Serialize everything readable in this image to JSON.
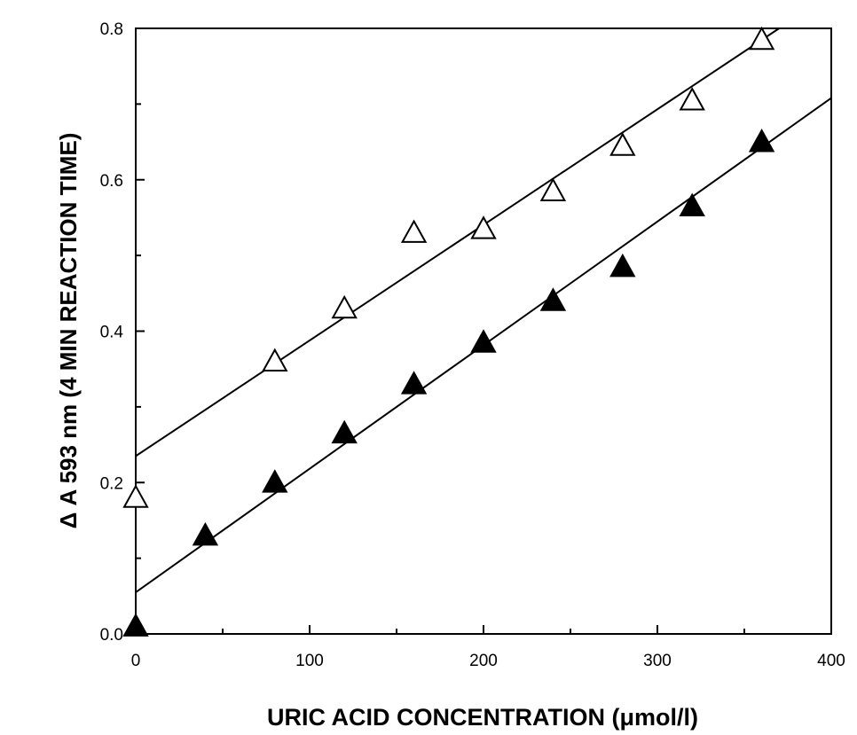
{
  "chart_data": {
    "type": "scatter",
    "title": "",
    "xlabel": "URIC  ACID  CONCENTRATION  (μmol/l)",
    "ylabel": "Δ A 593 nm (4 MIN REACTION TIME)",
    "xlim": [
      0,
      400
    ],
    "ylim": [
      0,
      0.8
    ],
    "xticks": [
      0,
      100,
      200,
      300,
      400
    ],
    "xtick_labels": [
      "0",
      "100",
      "200",
      "300",
      "400"
    ],
    "yticks": [
      0.0,
      0.2,
      0.4,
      0.6,
      0.8
    ],
    "ytick_labels": [
      "0.0",
      "0.2",
      "0.4",
      "0.6",
      "0.8"
    ],
    "grid": false,
    "legend": "none",
    "series": [
      {
        "marker": "open-triangle",
        "x": [
          0,
          80,
          120,
          160,
          200,
          240,
          280,
          320,
          360
        ],
        "y": [
          0.18,
          0.36,
          0.43,
          0.53,
          0.535,
          0.585,
          0.645,
          0.705,
          0.785
        ],
        "fit_line": {
          "x": [
            0,
            370
          ],
          "y": [
            0.235,
            0.8
          ]
        }
      },
      {
        "marker": "filled-triangle",
        "x": [
          0,
          40,
          80,
          120,
          160,
          200,
          240,
          280,
          320,
          360
        ],
        "y": [
          0.01,
          0.13,
          0.2,
          0.265,
          0.33,
          0.385,
          0.44,
          0.485,
          0.565,
          0.65
        ],
        "fit_line": {
          "x": [
            0,
            400
          ],
          "y": [
            0.055,
            0.708
          ]
        }
      }
    ]
  }
}
